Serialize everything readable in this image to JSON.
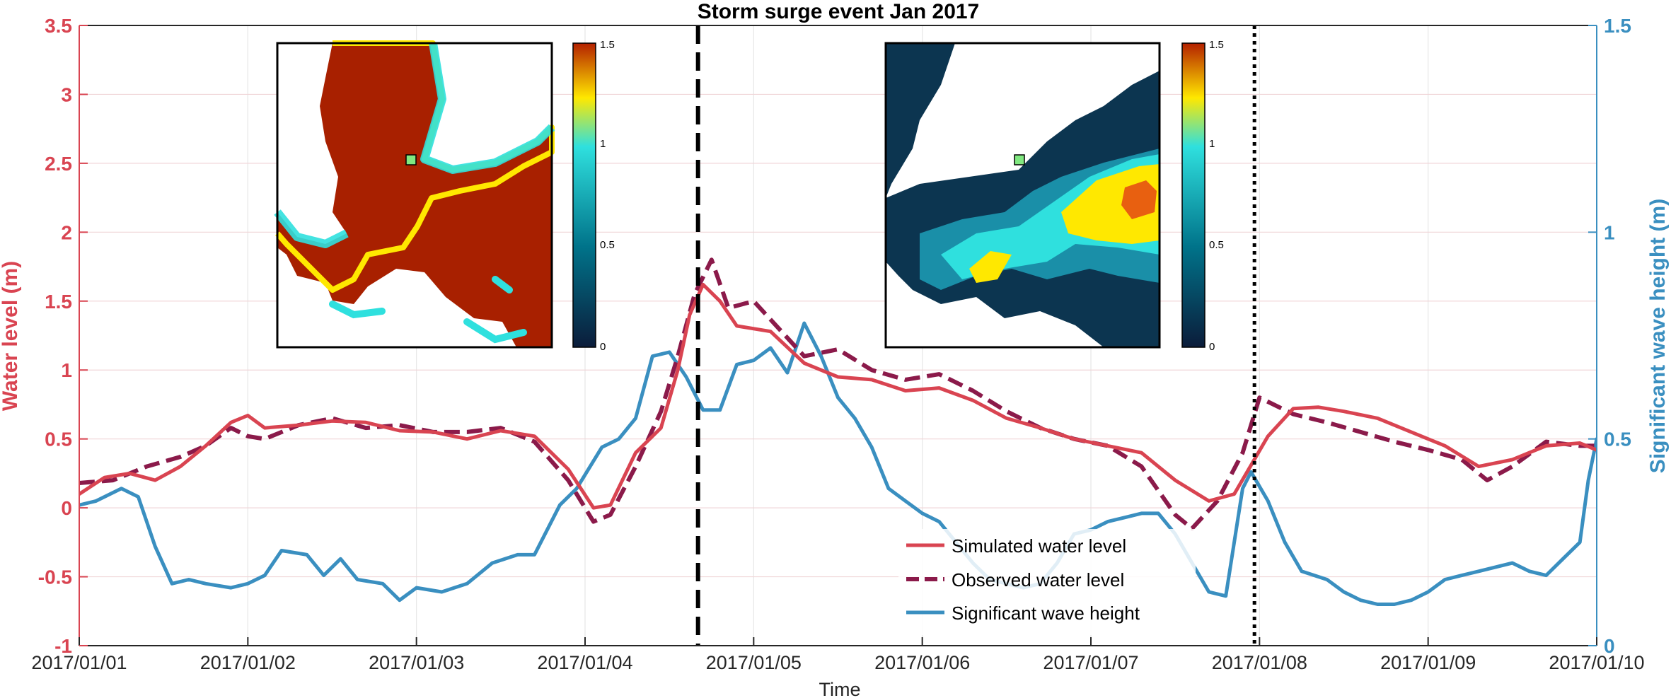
{
  "chart_data": {
    "type": "line",
    "title": "Storm surge event Jan 2017",
    "xlabel": "Time",
    "ylabel_left": "Water level (m)",
    "ylabel_right": "Significant wave height (m)",
    "x_range_days": [
      0,
      9
    ],
    "ylim_left": [
      -1,
      3.5
    ],
    "ylim_right": [
      0,
      1.5
    ],
    "grid": true,
    "x_ticks": [
      {
        "day": 0,
        "label": "2017/01/01"
      },
      {
        "day": 1,
        "label": "2017/01/02"
      },
      {
        "day": 2,
        "label": "2017/01/03"
      },
      {
        "day": 3,
        "label": "2017/01/04"
      },
      {
        "day": 4,
        "label": "2017/01/05"
      },
      {
        "day": 5,
        "label": "2017/01/06"
      },
      {
        "day": 6,
        "label": "2017/01/07"
      },
      {
        "day": 7,
        "label": "2017/01/08"
      },
      {
        "day": 8,
        "label": "2017/01/09"
      },
      {
        "day": 9,
        "label": "2017/01/10"
      }
    ],
    "y_ticks_left": [
      {
        "value": -1,
        "label": "-1"
      },
      {
        "value": -0.5,
        "label": "-0.5"
      },
      {
        "value": 0,
        "label": "0"
      },
      {
        "value": 0.5,
        "label": "0.5"
      },
      {
        "value": 1,
        "label": "1"
      },
      {
        "value": 1.5,
        "label": "1.5"
      },
      {
        "value": 2,
        "label": "2"
      },
      {
        "value": 2.5,
        "label": "2.5"
      },
      {
        "value": 3,
        "label": "3"
      },
      {
        "value": 3.5,
        "label": "3.5"
      }
    ],
    "y_ticks_right": [
      {
        "value": 0,
        "label": "0"
      },
      {
        "value": 0.5,
        "label": "0.5"
      },
      {
        "value": 1,
        "label": "1"
      },
      {
        "value": 1.5,
        "label": "1.5"
      }
    ],
    "vertical_markers": [
      {
        "day": 3.67,
        "style": "dashed"
      },
      {
        "day": 6.97,
        "style": "dotted"
      }
    ],
    "colors": {
      "simulated": "#d94451",
      "observed": "#8b1a4a",
      "wave": "#3a8fc0",
      "left_axis": "#d94451",
      "right_axis": "#3a8fc0"
    },
    "series": [
      {
        "name": "Simulated water level",
        "axis": "left",
        "style": "solid",
        "points": [
          [
            0,
            0.1
          ],
          [
            0.15,
            0.22
          ],
          [
            0.3,
            0.25
          ],
          [
            0.45,
            0.2
          ],
          [
            0.6,
            0.3
          ],
          [
            0.75,
            0.45
          ],
          [
            0.9,
            0.62
          ],
          [
            1.0,
            0.67
          ],
          [
            1.1,
            0.58
          ],
          [
            1.3,
            0.6
          ],
          [
            1.5,
            0.63
          ],
          [
            1.7,
            0.62
          ],
          [
            1.9,
            0.56
          ],
          [
            2.1,
            0.55
          ],
          [
            2.3,
            0.5
          ],
          [
            2.5,
            0.56
          ],
          [
            2.7,
            0.52
          ],
          [
            2.9,
            0.28
          ],
          [
            3.05,
            0.0
          ],
          [
            3.15,
            0.02
          ],
          [
            3.3,
            0.4
          ],
          [
            3.45,
            0.58
          ],
          [
            3.55,
            1.0
          ],
          [
            3.62,
            1.4
          ],
          [
            3.7,
            1.62
          ],
          [
            3.8,
            1.5
          ],
          [
            3.9,
            1.32
          ],
          [
            4.1,
            1.28
          ],
          [
            4.3,
            1.05
          ],
          [
            4.5,
            0.95
          ],
          [
            4.7,
            0.93
          ],
          [
            4.9,
            0.85
          ],
          [
            5.1,
            0.87
          ],
          [
            5.3,
            0.78
          ],
          [
            5.5,
            0.65
          ],
          [
            5.7,
            0.58
          ],
          [
            5.9,
            0.5
          ],
          [
            6.1,
            0.45
          ],
          [
            6.3,
            0.4
          ],
          [
            6.5,
            0.2
          ],
          [
            6.7,
            0.05
          ],
          [
            6.85,
            0.1
          ],
          [
            7.05,
            0.52
          ],
          [
            7.2,
            0.72
          ],
          [
            7.35,
            0.73
          ],
          [
            7.5,
            0.7
          ],
          [
            7.7,
            0.65
          ],
          [
            7.9,
            0.55
          ],
          [
            8.1,
            0.45
          ],
          [
            8.3,
            0.3
          ],
          [
            8.5,
            0.35
          ],
          [
            8.7,
            0.45
          ],
          [
            8.9,
            0.47
          ],
          [
            9.0,
            0.42
          ]
        ]
      },
      {
        "name": "Observed water level",
        "axis": "left",
        "style": "dashed",
        "points": [
          [
            0,
            0.18
          ],
          [
            0.2,
            0.2
          ],
          [
            0.4,
            0.3
          ],
          [
            0.6,
            0.37
          ],
          [
            0.75,
            0.45
          ],
          [
            0.9,
            0.58
          ],
          [
            1.0,
            0.52
          ],
          [
            1.1,
            0.5
          ],
          [
            1.3,
            0.6
          ],
          [
            1.5,
            0.65
          ],
          [
            1.7,
            0.58
          ],
          [
            1.9,
            0.6
          ],
          [
            2.1,
            0.55
          ],
          [
            2.3,
            0.55
          ],
          [
            2.5,
            0.58
          ],
          [
            2.7,
            0.48
          ],
          [
            2.9,
            0.2
          ],
          [
            3.05,
            -0.1
          ],
          [
            3.15,
            -0.05
          ],
          [
            3.3,
            0.3
          ],
          [
            3.45,
            0.7
          ],
          [
            3.55,
            1.1
          ],
          [
            3.65,
            1.55
          ],
          [
            3.75,
            1.8
          ],
          [
            3.85,
            1.45
          ],
          [
            4.0,
            1.5
          ],
          [
            4.15,
            1.3
          ],
          [
            4.3,
            1.1
          ],
          [
            4.5,
            1.15
          ],
          [
            4.7,
            1.0
          ],
          [
            4.9,
            0.93
          ],
          [
            5.1,
            0.97
          ],
          [
            5.3,
            0.85
          ],
          [
            5.5,
            0.7
          ],
          [
            5.7,
            0.58
          ],
          [
            5.9,
            0.5
          ],
          [
            6.1,
            0.45
          ],
          [
            6.3,
            0.3
          ],
          [
            6.5,
            -0.05
          ],
          [
            6.6,
            -0.15
          ],
          [
            6.75,
            0.05
          ],
          [
            6.9,
            0.4
          ],
          [
            7.0,
            0.8
          ],
          [
            7.2,
            0.68
          ],
          [
            7.4,
            0.62
          ],
          [
            7.6,
            0.55
          ],
          [
            7.8,
            0.48
          ],
          [
            8.0,
            0.42
          ],
          [
            8.2,
            0.35
          ],
          [
            8.35,
            0.2
          ],
          [
            8.5,
            0.3
          ],
          [
            8.7,
            0.48
          ],
          [
            8.9,
            0.45
          ],
          [
            9.0,
            0.45
          ]
        ]
      },
      {
        "name": "Significant wave height",
        "axis": "right",
        "style": "solid",
        "points": [
          [
            0,
            0.34
          ],
          [
            0.1,
            0.35
          ],
          [
            0.25,
            0.38
          ],
          [
            0.35,
            0.36
          ],
          [
            0.45,
            0.24
          ],
          [
            0.55,
            0.15
          ],
          [
            0.65,
            0.16
          ],
          [
            0.75,
            0.15
          ],
          [
            0.9,
            0.14
          ],
          [
            1.0,
            0.15
          ],
          [
            1.1,
            0.17
          ],
          [
            1.2,
            0.23
          ],
          [
            1.35,
            0.22
          ],
          [
            1.45,
            0.17
          ],
          [
            1.55,
            0.21
          ],
          [
            1.65,
            0.16
          ],
          [
            1.8,
            0.15
          ],
          [
            1.9,
            0.11
          ],
          [
            2.0,
            0.14
          ],
          [
            2.15,
            0.13
          ],
          [
            2.3,
            0.15
          ],
          [
            2.45,
            0.2
          ],
          [
            2.6,
            0.22
          ],
          [
            2.7,
            0.22
          ],
          [
            2.85,
            0.34
          ],
          [
            2.95,
            0.38
          ],
          [
            3.1,
            0.48
          ],
          [
            3.2,
            0.5
          ],
          [
            3.3,
            0.55
          ],
          [
            3.4,
            0.7
          ],
          [
            3.5,
            0.71
          ],
          [
            3.6,
            0.65
          ],
          [
            3.7,
            0.57
          ],
          [
            3.8,
            0.57
          ],
          [
            3.9,
            0.68
          ],
          [
            4.0,
            0.69
          ],
          [
            4.1,
            0.72
          ],
          [
            4.2,
            0.66
          ],
          [
            4.3,
            0.78
          ],
          [
            4.4,
            0.7
          ],
          [
            4.5,
            0.6
          ],
          [
            4.6,
            0.55
          ],
          [
            4.7,
            0.48
          ],
          [
            4.8,
            0.38
          ],
          [
            4.9,
            0.35
          ],
          [
            5.0,
            0.32
          ],
          [
            5.1,
            0.3
          ],
          [
            5.2,
            0.25
          ],
          [
            5.3,
            0.2
          ],
          [
            5.4,
            0.16
          ],
          [
            5.5,
            0.15
          ],
          [
            5.6,
            0.14
          ],
          [
            5.7,
            0.15
          ],
          [
            5.8,
            0.2
          ],
          [
            5.9,
            0.27
          ],
          [
            6.0,
            0.28
          ],
          [
            6.1,
            0.3
          ],
          [
            6.2,
            0.31
          ],
          [
            6.3,
            0.32
          ],
          [
            6.4,
            0.32
          ],
          [
            6.5,
            0.27
          ],
          [
            6.6,
            0.2
          ],
          [
            6.7,
            0.13
          ],
          [
            6.8,
            0.12
          ],
          [
            6.9,
            0.38
          ],
          [
            6.95,
            0.42
          ],
          [
            7.05,
            0.35
          ],
          [
            7.15,
            0.25
          ],
          [
            7.25,
            0.18
          ],
          [
            7.4,
            0.16
          ],
          [
            7.5,
            0.13
          ],
          [
            7.6,
            0.11
          ],
          [
            7.7,
            0.1
          ],
          [
            7.8,
            0.1
          ],
          [
            7.9,
            0.11
          ],
          [
            8.0,
            0.13
          ],
          [
            8.1,
            0.16
          ],
          [
            8.2,
            0.17
          ],
          [
            8.3,
            0.18
          ],
          [
            8.4,
            0.19
          ],
          [
            8.5,
            0.2
          ],
          [
            8.6,
            0.18
          ],
          [
            8.7,
            0.17
          ],
          [
            8.8,
            0.21
          ],
          [
            8.9,
            0.25
          ],
          [
            8.95,
            0.4
          ],
          [
            9.0,
            0.5
          ]
        ]
      }
    ],
    "legend": {
      "placement": "bottom-center",
      "entries": [
        "Simulated water level",
        "Observed water level",
        "Significant wave height"
      ]
    },
    "insets": [
      {
        "name": "surge-map",
        "placement": "upper-left",
        "colorbar_ticks": [
          "0",
          "0.5",
          "1",
          "1.5"
        ]
      },
      {
        "name": "wave-map",
        "placement": "upper-right",
        "colorbar_ticks": [
          "0",
          "0.5",
          "1",
          "1.5"
        ]
      }
    ]
  }
}
